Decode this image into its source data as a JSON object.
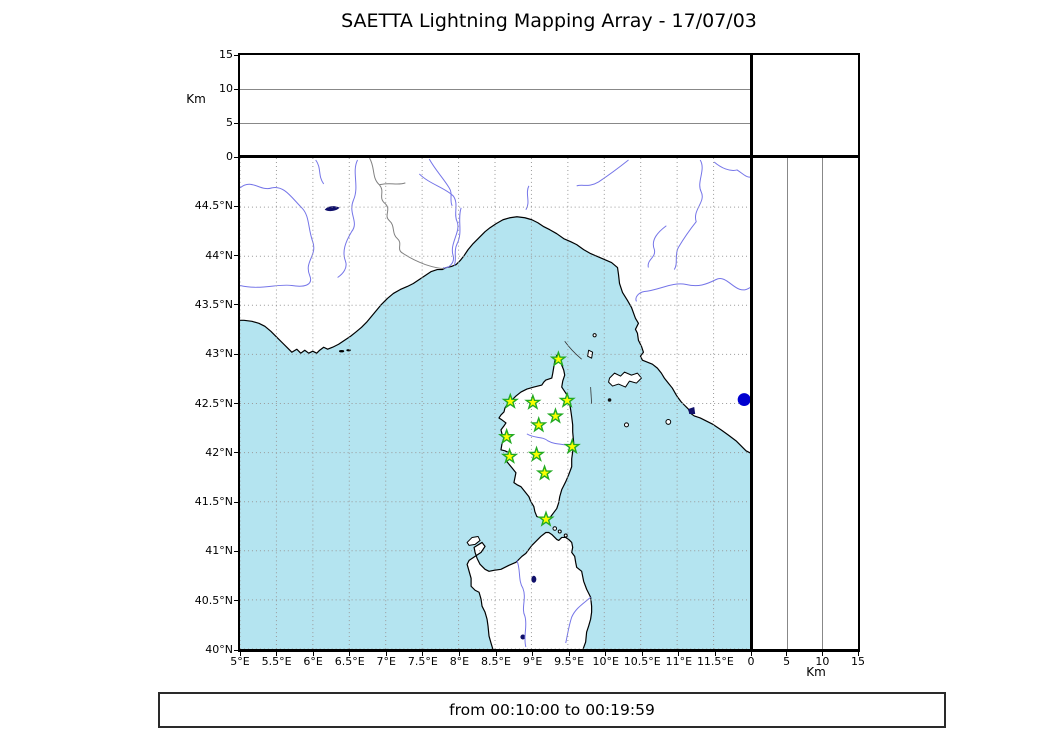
{
  "title": "SAETTA Lightning Mapping Array - 17/07/03",
  "footer": "from 00:10:00 to 00:19:59",
  "map": {
    "lon_min": 5,
    "lon_max": 12,
    "lat_min": 40,
    "lat_max": 45,
    "x_ticks": [
      {
        "label": "5°E",
        "lon": 5
      },
      {
        "label": "5.5°E",
        "lon": 5.5
      },
      {
        "label": "6°E",
        "lon": 6
      },
      {
        "label": "6.5°E",
        "lon": 6.5
      },
      {
        "label": "7°E",
        "lon": 7
      },
      {
        "label": "7.5°E",
        "lon": 7.5
      },
      {
        "label": "8°E",
        "lon": 8
      },
      {
        "label": "8.5°E",
        "lon": 8.5
      },
      {
        "label": "9°E",
        "lon": 9
      },
      {
        "label": "9.5°E",
        "lon": 9.5
      },
      {
        "label": "10°E",
        "lon": 10
      },
      {
        "label": "10.5°E",
        "lon": 10.5
      },
      {
        "label": "11°E",
        "lon": 11
      },
      {
        "label": "11.5°E",
        "lon": 11.5
      }
    ],
    "y_ticks": [
      {
        "label": "44.5°N",
        "lat": 44.5
      },
      {
        "label": "44°N",
        "lat": 44
      },
      {
        "label": "43.5°N",
        "lat": 43.5
      },
      {
        "label": "43°N",
        "lat": 43
      },
      {
        "label": "42.5°N",
        "lat": 42.5
      },
      {
        "label": "42°N",
        "lat": 42
      },
      {
        "label": "41.5°N",
        "lat": 41.5
      },
      {
        "label": "41°N",
        "lat": 41
      },
      {
        "label": "40.5°N",
        "lat": 40.5
      },
      {
        "label": "40°N",
        "lat": 40
      }
    ],
    "colors": {
      "sea": "#b4e4f0",
      "land": "#ffffff",
      "coast": "#000000",
      "river": "#7575e8",
      "country_border": "#808080",
      "grid": "#999999",
      "station_fill": "#fbff00",
      "station_stroke": "#22aa22",
      "event_dot": "#0000d0",
      "lake": "#10106a"
    },
    "stations": [
      {
        "lon": 9.37,
        "lat": 42.95
      },
      {
        "lon": 8.71,
        "lat": 42.52
      },
      {
        "lon": 9.02,
        "lat": 42.51
      },
      {
        "lon": 9.49,
        "lat": 42.53
      },
      {
        "lon": 9.33,
        "lat": 42.37
      },
      {
        "lon": 9.1,
        "lat": 42.28
      },
      {
        "lon": 8.66,
        "lat": 42.16
      },
      {
        "lon": 9.56,
        "lat": 42.06
      },
      {
        "lon": 8.7,
        "lat": 41.96
      },
      {
        "lon": 9.07,
        "lat": 41.98
      },
      {
        "lon": 9.18,
        "lat": 41.79
      },
      {
        "lon": 9.2,
        "lat": 41.32
      }
    ],
    "event_dot": {
      "lon": 11.92,
      "lat": 42.54
    }
  },
  "alt_axis": {
    "label": "Km",
    "ticks": [
      0,
      5,
      10,
      15
    ],
    "max": 15,
    "gridlines": [
      5,
      10
    ]
  }
}
